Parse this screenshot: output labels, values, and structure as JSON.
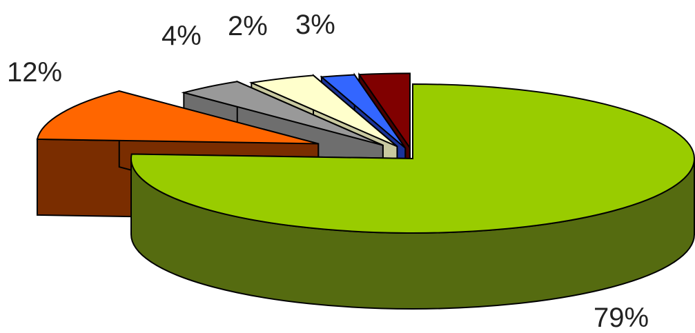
{
  "chart_data": {
    "type": "pie",
    "title": "",
    "slices": [
      {
        "value": 79,
        "label": "79%",
        "color": "#99CC00",
        "side_color": "#556B10"
      },
      {
        "value": 12,
        "label": "12%",
        "color": "#FF6600",
        "side_color": "#7A2D00"
      },
      {
        "value": 4,
        "label": "",
        "color": "#999999",
        "side_color": "#6E6E6E"
      },
      {
        "value": 4,
        "label": "4%",
        "color": "#FFFFCC",
        "side_color": "#C9C9A0"
      },
      {
        "value": 2,
        "label": "2%",
        "color": "#3366FF",
        "side_color": "#1A3399"
      },
      {
        "value": 3,
        "label": "3%",
        "color": "#800000",
        "side_color": "#4A0000"
      }
    ],
    "exploded": true,
    "three_d": true,
    "legend": "none"
  }
}
